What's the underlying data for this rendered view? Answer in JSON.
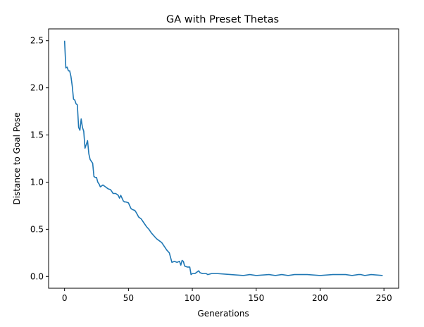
{
  "chart_data": {
    "type": "line",
    "title": "GA with Preset Thetas",
    "xlabel": "Generations",
    "ylabel": "Distance to Goal Pose",
    "xlim": [
      -12.5,
      261.5
    ],
    "ylim": [
      -0.125,
      2.625
    ],
    "xticks": [
      0,
      50,
      100,
      150,
      200,
      250
    ],
    "yticks": [
      0.0,
      0.5,
      1.0,
      1.5,
      2.0,
      2.5
    ],
    "xtick_labels": [
      "0",
      "50",
      "100",
      "150",
      "200",
      "250"
    ],
    "ytick_labels": [
      "0.0",
      "0.5",
      "1.0",
      "1.5",
      "2.0",
      "2.5"
    ],
    "grid": false,
    "line_color": "#1f77b4",
    "series": [
      {
        "x": [
          0,
          1,
          2,
          3,
          4,
          5,
          6,
          7,
          8,
          9,
          10,
          11,
          12,
          13,
          14,
          15,
          16,
          17,
          18,
          19,
          20,
          21,
          22,
          23,
          24,
          25,
          26,
          27,
          28,
          29,
          30,
          32,
          34,
          36,
          37,
          38,
          40,
          42,
          43,
          44,
          46,
          47,
          48,
          50,
          52,
          53,
          55,
          56,
          58,
          60,
          62,
          64,
          66,
          68,
          70,
          72,
          74,
          76,
          78,
          80,
          82,
          84,
          86,
          88,
          90,
          91,
          92,
          93,
          94,
          96,
          98,
          99,
          100,
          102,
          104,
          105,
          106,
          108,
          110,
          111,
          112,
          115,
          120,
          130,
          140,
          145,
          150,
          160,
          165,
          170,
          175,
          180,
          190,
          200,
          210,
          220,
          225,
          230,
          232,
          235,
          240,
          249
        ],
        "y": [
          2.5,
          2.21,
          2.22,
          2.18,
          2.18,
          2.12,
          2.02,
          1.88,
          1.87,
          1.83,
          1.82,
          1.58,
          1.55,
          1.67,
          1.58,
          1.54,
          1.36,
          1.4,
          1.44,
          1.3,
          1.24,
          1.22,
          1.2,
          1.06,
          1.05,
          1.05,
          1.0,
          0.98,
          0.95,
          0.96,
          0.97,
          0.95,
          0.93,
          0.92,
          0.9,
          0.88,
          0.88,
          0.86,
          0.83,
          0.86,
          0.8,
          0.79,
          0.79,
          0.78,
          0.72,
          0.71,
          0.7,
          0.68,
          0.63,
          0.61,
          0.57,
          0.53,
          0.5,
          0.46,
          0.43,
          0.4,
          0.38,
          0.36,
          0.32,
          0.28,
          0.25,
          0.15,
          0.16,
          0.15,
          0.16,
          0.12,
          0.17,
          0.16,
          0.11,
          0.1,
          0.1,
          0.02,
          0.03,
          0.03,
          0.05,
          0.06,
          0.04,
          0.03,
          0.03,
          0.03,
          0.02,
          0.03,
          0.03,
          0.02,
          0.01,
          0.02,
          0.01,
          0.02,
          0.01,
          0.02,
          0.01,
          0.02,
          0.02,
          0.01,
          0.02,
          0.02,
          0.01,
          0.02,
          0.02,
          0.01,
          0.02,
          0.01
        ]
      }
    ]
  }
}
